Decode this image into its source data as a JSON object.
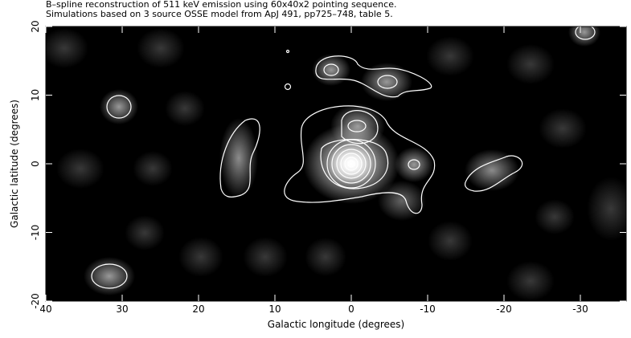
{
  "chart_data": {
    "type": "image",
    "title": "B–spline reconstruction of 511 keV emission using 60x40x2 pointing sequence.",
    "subtitle": "Simulations based on 3 source OSSE model from ApJ 491, pp725–748, table 5.",
    "xlabel": "Galactic longitude (degrees)",
    "ylabel": "Galactic latitude (degrees)",
    "xlim": [
      40,
      -36
    ],
    "ylim": [
      -20,
      20
    ],
    "xticks": [
      40,
      30,
      20,
      10,
      0,
      -10,
      -20,
      -30
    ],
    "yticks": [
      -20,
      -10,
      0,
      10,
      20
    ]
  }
}
